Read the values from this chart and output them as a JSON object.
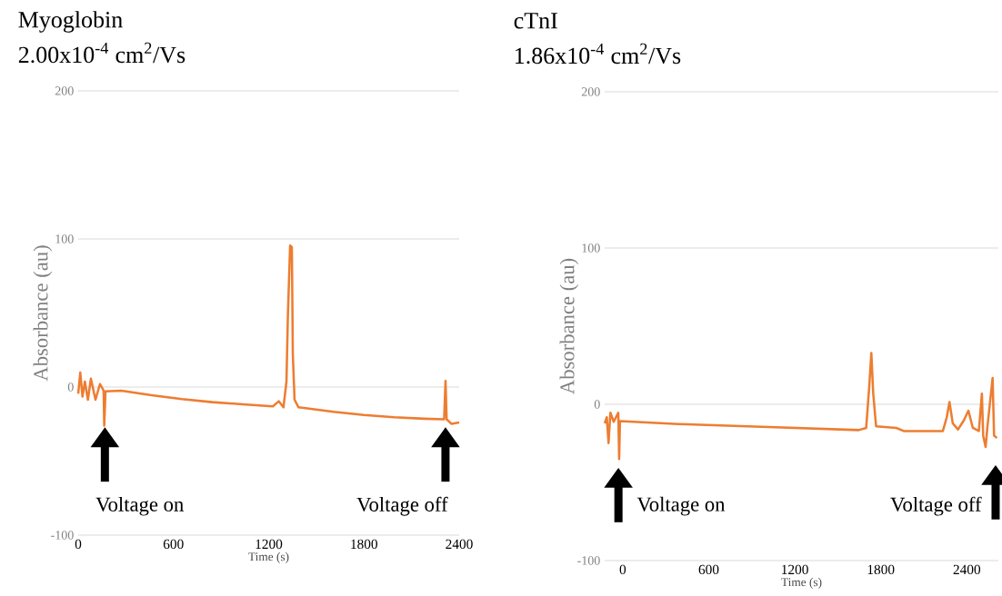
{
  "chart_data": [
    {
      "type": "line",
      "title": "Myoglobin",
      "subtitle": "2.00x10$^{-4}$ cm$^{2}$/Vs",
      "xlabel": "Time  (s)",
      "ylabel": "Absorbance (au)",
      "color": "#ed7d31",
      "grid": "y",
      "xlim": [
        0,
        2400
      ],
      "ylim": [
        -100,
        200
      ],
      "xticks": [
        0,
        600,
        1200,
        1800,
        2400
      ],
      "yticks": [
        -100,
        0,
        100,
        200
      ],
      "x": [
        0,
        13,
        27,
        42,
        61,
        80,
        109,
        137,
        160,
        164,
        172,
        271,
        462,
        653,
        844,
        1035,
        1226,
        1264,
        1293,
        1312,
        1321,
        1335,
        1346,
        1352,
        1363,
        1388,
        1608,
        1799,
        1990,
        2180,
        2305,
        2314,
        2321,
        2352,
        2400
      ],
      "values": [
        -4.5,
        9.8,
        -6.5,
        3.7,
        -8.6,
        5.7,
        -8.6,
        2,
        -2.4,
        -26,
        -2.9,
        -2.4,
        -5.5,
        -8.2,
        -10.2,
        -11.6,
        -13,
        -9.6,
        -13.7,
        3.7,
        48.6,
        95.5,
        94.5,
        22,
        -8.6,
        -13.7,
        -16.7,
        -18.8,
        -20.4,
        -21.4,
        -21.8,
        4.1,
        -21.8,
        -24.9,
        -23.9
      ],
      "annotations": [
        "Voltage on",
        "Voltage off"
      ]
    },
    {
      "type": "line",
      "title": "cTnI",
      "subtitle": "1.86x10$^{-4}$ cm$^{2}$/Vs",
      "xlabel": "Time  (s)",
      "ylabel": "Absorbance (au)",
      "color": "#ed7d31",
      "grid": "y",
      "xlim": [
        -126,
        2620
      ],
      "ylim": [
        -100,
        200
      ],
      "xticks": [
        0,
        600,
        1200,
        1800,
        2400
      ],
      "yticks": [
        -100,
        0,
        100,
        200
      ],
      "x": [
        -126,
        -111,
        -99,
        -86,
        -63,
        -31,
        -25,
        -19,
        388,
        1017,
        1646,
        1698,
        1719,
        1734,
        1747,
        1767,
        1908,
        1960,
        2233,
        2260,
        2279,
        2302,
        2338,
        2379,
        2411,
        2442,
        2484,
        2505,
        2514,
        2531,
        2544,
        2580,
        2590,
        2610
      ],
      "values": [
        -12.2,
        -8.3,
        -24.8,
        -5.4,
        -11.2,
        -5.4,
        -35,
        -10.7,
        -12.6,
        -14.5,
        -16.5,
        -15.1,
        11,
        32.8,
        7.2,
        -14.1,
        -15.1,
        -17.1,
        -17.1,
        -8.3,
        1.4,
        -12.2,
        -16.1,
        -10.3,
        -4.1,
        -15.1,
        -17.1,
        6.8,
        -20,
        -27.3,
        -14.1,
        16.9,
        -20,
        -21.6
      ],
      "annotations": [
        "Voltage on",
        "Voltage off"
      ]
    }
  ]
}
